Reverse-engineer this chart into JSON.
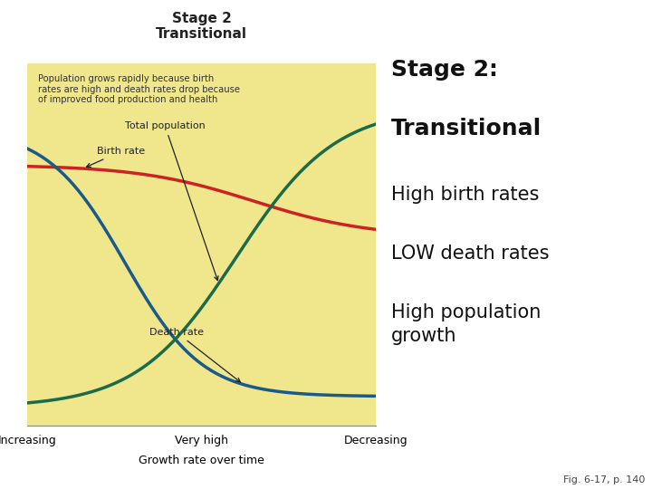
{
  "background_color": "#ffffff",
  "chart_bg_color": "#f0e68c",
  "title_line1": "Stage 2",
  "title_line2": "Transitional",
  "annotation_text": "Population grows rapidly because birth\nrates are high and death rates drop because\nof improved food production and health",
  "xlabel": "Growth rate over time",
  "xtick_labels": [
    "Increasing",
    "Very high",
    "Decreasing"
  ],
  "right_title_line1": "Stage 2:",
  "right_title_line2": "Transitional",
  "right_line1": "High birth rates",
  "right_line2": "LOW death rates",
  "right_line3": "High population\ngrowth",
  "fig_caption": "Fig. 6-17, p. 140",
  "birth_rate_color": "#cc2222",
  "death_rate_color": "#1a6b4a",
  "total_pop_color": "#1a5a8a",
  "birth_rate_label": "Birth rate",
  "death_rate_label": "Death rate",
  "total_pop_label": "Total population"
}
